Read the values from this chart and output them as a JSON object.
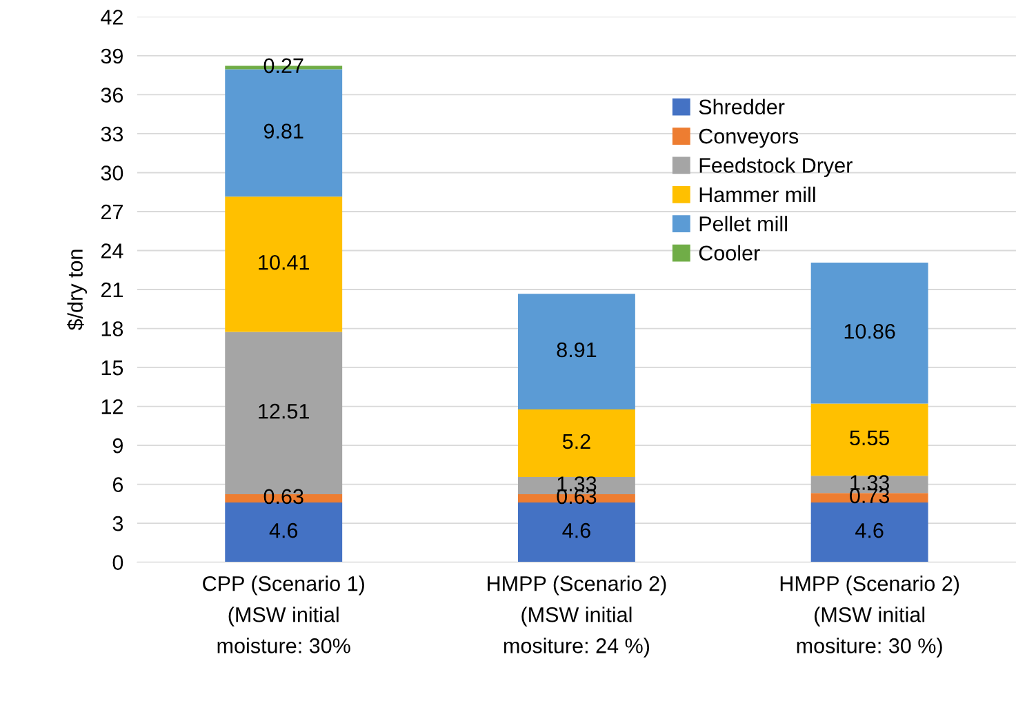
{
  "chart_data": {
    "type": "bar",
    "stacked": true,
    "ylabel": "$/dry ton",
    "categories": [
      "CPP (Scenario 1)\n(MSW initial\nmoisture: 30%",
      "HMPP (Scenario 2)\n(MSW initial\nmositure: 24 %)",
      "HMPP (Scenario 2)\n(MSW initial\nmositure: 30 %)"
    ],
    "series": [
      {
        "name": "Shredder",
        "color": "#4472c4",
        "values": [
          4.6,
          4.6,
          4.6
        ]
      },
      {
        "name": "Conveyors",
        "color": "#ed7d31",
        "values": [
          0.63,
          0.63,
          0.73
        ]
      },
      {
        "name": "Feedstock Dryer",
        "color": "#a5a5a5",
        "values": [
          12.51,
          1.33,
          1.33
        ]
      },
      {
        "name": "Hammer mill",
        "color": "#ffc000",
        "values": [
          10.41,
          5.2,
          5.55
        ]
      },
      {
        "name": "Pellet mill",
        "color": "#5b9bd5",
        "values": [
          9.81,
          8.91,
          10.86
        ]
      },
      {
        "name": "Cooler",
        "color": "#70ad47",
        "values": [
          0.27,
          null,
          null
        ]
      }
    ],
    "ylim": [
      0,
      42
    ],
    "yticks": [
      0,
      3,
      6,
      9,
      12,
      15,
      18,
      21,
      24,
      27,
      30,
      33,
      36,
      39,
      42
    ],
    "grid": "y",
    "legend": "top right",
    "data_labels": true
  }
}
